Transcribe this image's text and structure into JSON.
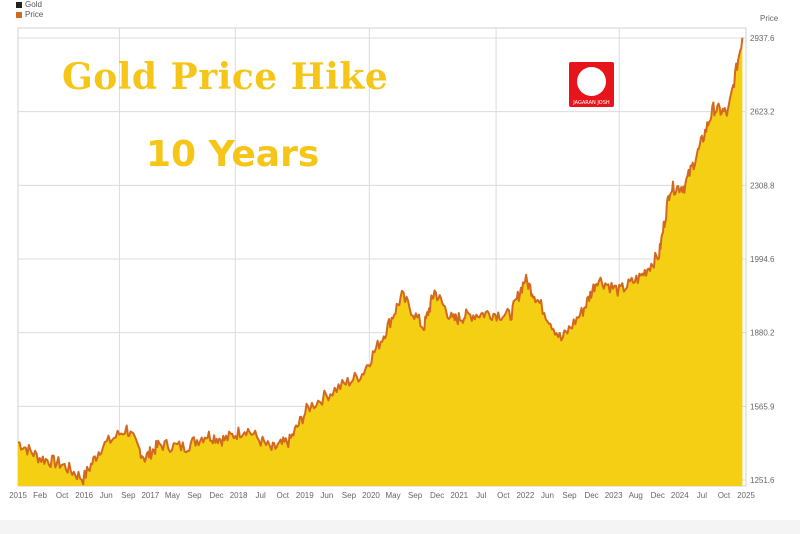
{
  "header": {
    "title_line1": "Gold Price Hike",
    "title_line2": "10 Years",
    "logo_text": "JAGARAN JOSH",
    "unit": "Price"
  },
  "legend": [
    {
      "label": "Gold",
      "color": "#222222"
    },
    {
      "label": "Price",
      "color": "#d2691e"
    }
  ],
  "colors": {
    "area_fill": "#f5cf14",
    "line": "#d2691e",
    "title": "#f5c518"
  },
  "chart_data": {
    "type": "area",
    "series": [
      {
        "name": "Price"
      }
    ],
    "y_tick_labels": [
      "1251.6",
      "1565.9",
      "1880.2",
      "1994.6",
      "2308.8",
      "2623.2",
      "2937.6"
    ],
    "ylim": [
      1100,
      2980
    ],
    "x_range": [
      2015.0,
      2025.05
    ],
    "x_tick_labels": [
      "2015",
      "Feb",
      "Oct",
      "2016",
      "Jun",
      "Sep",
      "2017",
      "May",
      "Sep",
      "Dec",
      "2018",
      "Jul",
      "Oct",
      "2019",
      "Jun",
      "Sep",
      "2020",
      "May",
      "Sep",
      "Dec",
      "2021",
      "Jul",
      "Oct",
      "2022",
      "Jun",
      "Sep",
      "Dec",
      "2023",
      "Aug",
      "Dec",
      "2024",
      "Jul",
      "Oct",
      "2025"
    ],
    "x": [
      2015.0,
      2015.3,
      2015.6,
      2015.9,
      2016.15,
      2016.5,
      2016.75,
      2016.95,
      2017.3,
      2017.6,
      2017.85,
      2018.15,
      2018.5,
      2018.75,
      2019.0,
      2019.4,
      2019.75,
      2020.05,
      2020.3,
      2020.6,
      2020.75,
      2021.0,
      2021.2,
      2021.5,
      2021.8,
      2022.0,
      2022.2,
      2022.5,
      2022.8,
      2023.0,
      2023.3,
      2023.6,
      2023.85,
      2024.0,
      2024.2,
      2024.4,
      2024.6,
      2024.8,
      2025.0
    ],
    "y": [
      1280,
      1215,
      1190,
      1130,
      1260,
      1335,
      1215,
      1270,
      1260,
      1310,
      1290,
      1335,
      1250,
      1285,
      1420,
      1500,
      1560,
      1720,
      1880,
      1750,
      1900,
      1780,
      1800,
      1810,
      1800,
      1950,
      1850,
      1700,
      1820,
      1950,
      1900,
      1960,
      2050,
      2320,
      2330,
      2480,
      2650,
      2630,
      2940
    ]
  }
}
